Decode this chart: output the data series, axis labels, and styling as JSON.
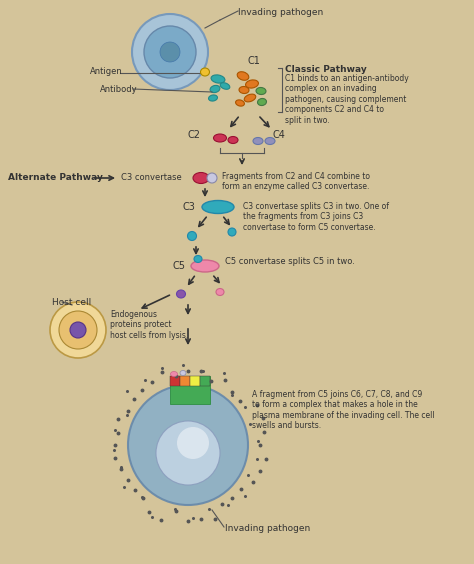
{
  "bg_color": "#D4C49A",
  "fig_width": 4.74,
  "fig_height": 5.64,
  "dpi": 100,
  "labels": {
    "invading_pathogen_top": "Invading pathogen",
    "C1": "C1",
    "antigen": "Antigen",
    "antibody": "Antibody",
    "classic_pathway_title": "Classic Pathway",
    "classic_pathway_text": "C1 binds to an antigen-antibody\ncomplex on an invading\npathogen, causing complement\ncomponents C2 and C4 to\nsplit in two.",
    "C2": "C2",
    "C4": "C4",
    "alternate_pathway": "Alternate Pathway",
    "C3_convertase_label": "C3 convertase",
    "C3_convertase_desc": "Fragments from C2 and C4 combine to\nform an enzyme called C3 convertase.",
    "C3": "C3",
    "C3_desc": "C3 convertase splits C3 in two. One of\nthe fragments from C3 joins C3\nconvertase to form C5 convertase.",
    "C5": "C5",
    "C5_desc": "C5 convertase splits C5 in two.",
    "host_cell": "Host cell",
    "endogenous_desc": "Endogenous\nproteins protect\nhost cells from lysis.",
    "invading_pathogen_bottom": "Invading pathogen",
    "bottom_desc": "A fragment from C5 joins C6, C7, C8, and C9\nto form a complex that makes a hole in the\nplasma membrane of the invading cell. The cell\nswells and bursts."
  },
  "colors": {
    "bg": "#D4C49A",
    "pathogen_outer_ring": "#A8C4D8",
    "pathogen_inner": "#7BAAC8",
    "pathogen_core": "#5B8FAA",
    "antigen_color": "#F0C030",
    "antibody_teal": "#30AAAA",
    "antibody_orange": "#E07820",
    "antibody_green": "#60AA50",
    "C2_color": "#CC3355",
    "C4_color": "#9090BB",
    "C3conv_pink": "#CC3355",
    "C3conv_lavender": "#C8C8E0",
    "C3_blue": "#30AABB",
    "C5_pink": "#EE88AA",
    "C5_blue_small": "#30AABB",
    "fragment_purple": "#8855AA",
    "fragment_pink": "#EE88AA",
    "host_outer": "#F0D898",
    "host_inner": "#E8C070",
    "host_nucleus": "#7755AA",
    "arrow_color": "#333333",
    "text_color": "#333333",
    "bottom_cell_blue": "#8AAFC8",
    "bottom_cell_light": "#C8D8E8",
    "bottom_cell_white": "#E8EEF4",
    "dot_color": "#555555",
    "membrane_colors": [
      "#CC3333",
      "#EE8833",
      "#EEEE33",
      "#55AA55",
      "#55AA55",
      "#55AA55",
      "#55AA55",
      "#EE88AA",
      "#EE88AA"
    ]
  }
}
